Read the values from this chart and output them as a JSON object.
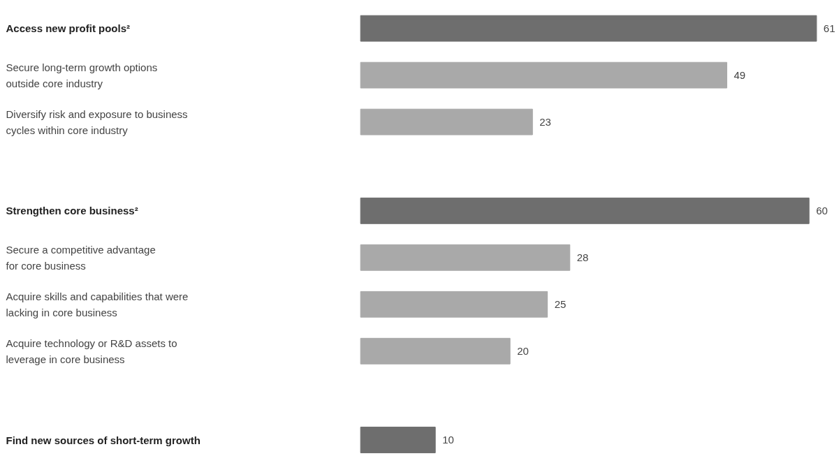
{
  "chart_data": {
    "type": "bar",
    "orientation": "horizontal",
    "data_labels": true,
    "grid": false,
    "categories": [
      "Access new profit pools²",
      "Secure long-term growth options\noutside core industry",
      "Diversify risk and exposure to business\ncycles within core industry",
      "Strengthen core business²",
      "Secure a competitive advantage\nfor core business",
      "Acquire skills and capabilities that were\nlacking in core business",
      "Acquire technology or R&D assets to\nleverage in core business",
      "Find new sources of short-term growth"
    ],
    "values": [
      61,
      49,
      23,
      60,
      28,
      25,
      20,
      10
    ],
    "colors": [
      "#6e6e6e",
      "#a9a9a9",
      "#a9a9a9",
      "#6e6e6e",
      "#a9a9a9",
      "#a9a9a9",
      "#a9a9a9",
      "#6e6e6e"
    ]
  }
}
